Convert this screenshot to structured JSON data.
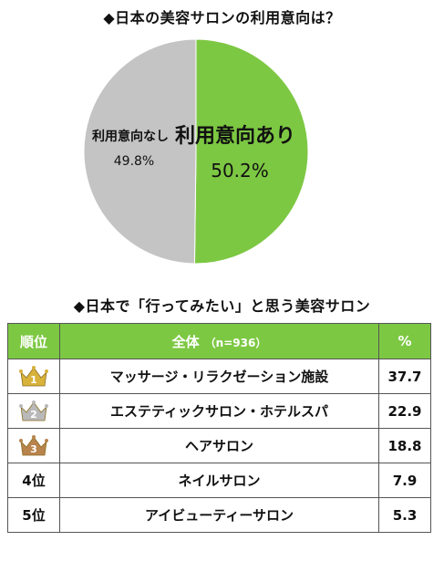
{
  "pie_section": {
    "title": "◆日本の美容サロンの利用意向は？"
  },
  "table_section": {
    "title": "◆日本で「行ってみたい」と思う美容サロン",
    "headers": {
      "rank": "順位",
      "name": "全体",
      "name_sub": "（n=936）",
      "pct": "%"
    },
    "rows": [
      {
        "rank": "1",
        "rank_label": "",
        "medal": "gold",
        "name": "マッサージ・リラクゼーション施設",
        "pct": "37.7"
      },
      {
        "rank": "2",
        "rank_label": "",
        "medal": "silver",
        "name": "エステティックサロン・ホテルスパ",
        "pct": "22.9"
      },
      {
        "rank": "3",
        "rank_label": "",
        "medal": "bronze",
        "name": "ヘアサロン",
        "pct": "18.8"
      },
      {
        "rank": "4",
        "rank_label": "4位",
        "medal": "",
        "name": "ネイルサロン",
        "pct": "7.9"
      },
      {
        "rank": "5",
        "rank_label": "5位",
        "medal": "",
        "name": "アイビューティーサロン",
        "pct": "5.3"
      }
    ]
  },
  "colors": {
    "green": "#7dc843",
    "gray": "#c4c4c4",
    "gold": "#d8b23a",
    "silver": "#b9b9b9",
    "bronze": "#b8834d"
  },
  "chart_data": {
    "type": "pie",
    "title": "◆日本の美容サロンの利用意向は？",
    "slices": [
      {
        "label": "利用意向あり",
        "value": 50.2,
        "value_label": "50.2%",
        "color": "#7dc843"
      },
      {
        "label": "利用意向なし",
        "value": 49.8,
        "value_label": "49.8%",
        "color": "#c4c4c4"
      }
    ]
  }
}
